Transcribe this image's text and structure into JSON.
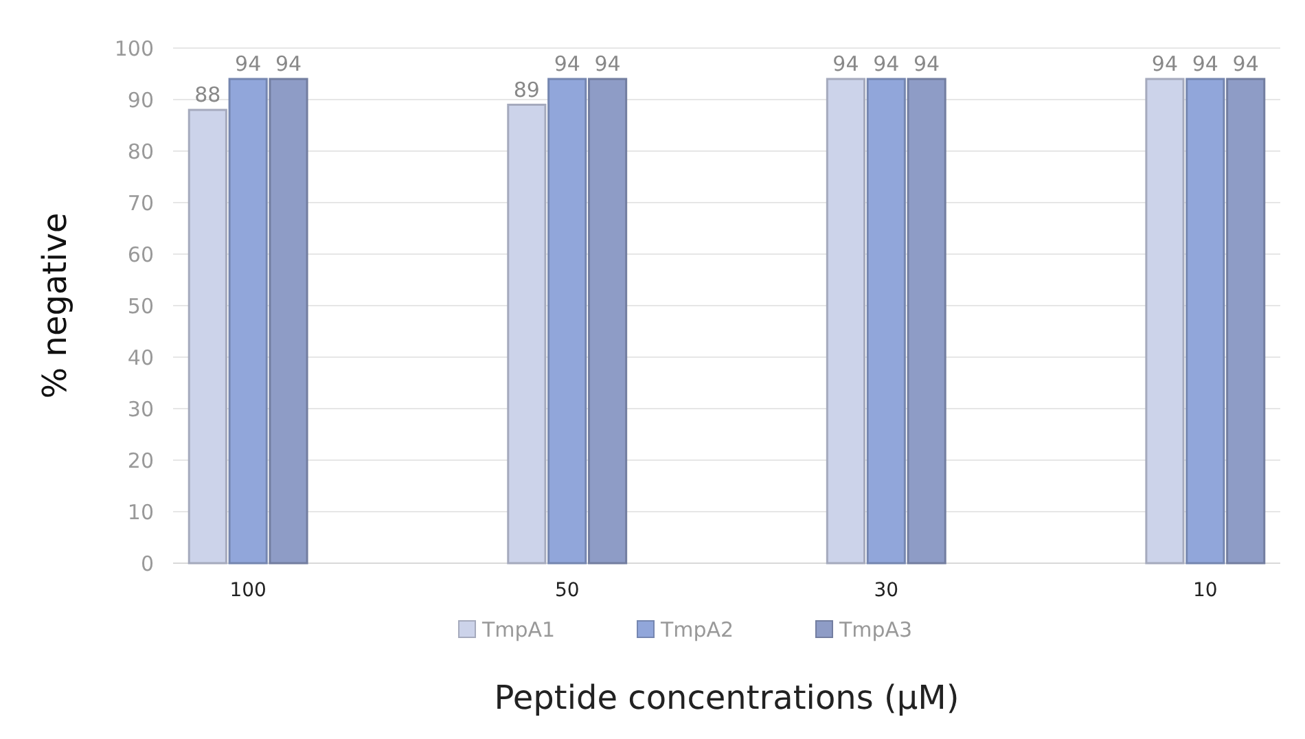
{
  "chart_data": {
    "type": "bar",
    "xlabel": "Peptide concentrations (µM)",
    "ylabel": "% negative",
    "categories": [
      "100",
      "50",
      "30",
      "10"
    ],
    "series": [
      {
        "name": "TmpA1",
        "color": "#ccd3ea",
        "values": [
          88,
          89,
          94,
          94
        ]
      },
      {
        "name": "TmpA2",
        "color": "#91a6da",
        "values": [
          94,
          94,
          94,
          94
        ]
      },
      {
        "name": "TmpA3",
        "color": "#8e9cc6",
        "values": [
          94,
          94,
          94,
          94
        ]
      }
    ],
    "ylim": [
      0,
      100
    ],
    "yticks": [
      0,
      10,
      20,
      30,
      40,
      50,
      60,
      70,
      80,
      90,
      100
    ],
    "grid": "y",
    "legend": "bottom",
    "data_labels": true
  }
}
